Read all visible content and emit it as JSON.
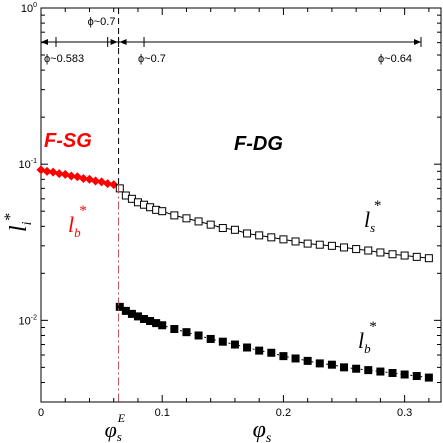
{
  "chart_data": {
    "type": "scatter",
    "title": "",
    "xlabel": "φ",
    "xlabel_subscript": "s",
    "ylabel": "l",
    "ylabel_subscript": "i",
    "ylabel_superscript": "*",
    "xlim": [
      0,
      0.33
    ],
    "ylim": [
      0.003,
      1
    ],
    "yscale": "log",
    "grid": false,
    "x_ticks": [
      {
        "value": 0,
        "label": "0"
      },
      {
        "value": 0.1,
        "label": "0.1"
      },
      {
        "value": 0.2,
        "label": "0.2"
      },
      {
        "value": 0.3,
        "label": "0.3"
      }
    ],
    "y_ticks": [
      {
        "value": 1,
        "base": "10",
        "exp": "0"
      },
      {
        "value": 0.1,
        "base": "10",
        "exp": "-1"
      },
      {
        "value": 0.01,
        "base": "10",
        "exp": "-2"
      }
    ],
    "phi_E_marker": {
      "x": 0.064,
      "label_main": "φ",
      "label_sub": "s",
      "label_sup": "E"
    },
    "regions": [
      {
        "label": "F-SG",
        "color": "#ff0000"
      },
      {
        "label": "F-DG",
        "color": "#000000"
      }
    ],
    "top_annotations": {
      "upper_label": "ϕ~0.7",
      "lower_labels": [
        "ϕ~0.583",
        "ϕ~0.7",
        "ϕ~0.64"
      ]
    },
    "series": [
      {
        "name": "l_b* (F-SG)",
        "label_main": "l",
        "label_sub": "b",
        "label_sup": "*",
        "marker": "diamond",
        "color": "#ff0000",
        "x": [
          0.0,
          0.005,
          0.01,
          0.015,
          0.02,
          0.025,
          0.03,
          0.035,
          0.04,
          0.045,
          0.05,
          0.055,
          0.06
        ],
        "y": [
          0.092,
          0.09,
          0.089,
          0.087,
          0.086,
          0.084,
          0.083,
          0.081,
          0.08,
          0.078,
          0.077,
          0.075,
          0.074
        ]
      },
      {
        "name": "l_s* (F-DG)",
        "label_main": "l",
        "label_sub": "s",
        "label_sup": "*",
        "marker": "square-open",
        "color": "#000000",
        "x": [
          0.065,
          0.07,
          0.075,
          0.08,
          0.085,
          0.09,
          0.095,
          0.1,
          0.11,
          0.12,
          0.13,
          0.14,
          0.15,
          0.16,
          0.17,
          0.18,
          0.19,
          0.2,
          0.21,
          0.22,
          0.23,
          0.24,
          0.25,
          0.26,
          0.27,
          0.28,
          0.29,
          0.3,
          0.31,
          0.32
        ],
        "y": [
          0.07,
          0.063,
          0.06,
          0.057,
          0.055,
          0.053,
          0.051,
          0.05,
          0.047,
          0.045,
          0.043,
          0.041,
          0.039,
          0.038,
          0.036,
          0.035,
          0.034,
          0.033,
          0.032,
          0.031,
          0.0305,
          0.03,
          0.0293,
          0.0286,
          0.028,
          0.0272,
          0.0265,
          0.026,
          0.0255,
          0.025
        ]
      },
      {
        "name": "l_b* (F-DG)",
        "label_main": "l",
        "label_sub": "b",
        "label_sup": "*",
        "marker": "square-filled",
        "color": "#000000",
        "x": [
          0.065,
          0.07,
          0.075,
          0.08,
          0.085,
          0.09,
          0.095,
          0.1,
          0.11,
          0.12,
          0.13,
          0.14,
          0.15,
          0.16,
          0.17,
          0.18,
          0.19,
          0.2,
          0.21,
          0.22,
          0.23,
          0.24,
          0.25,
          0.26,
          0.27,
          0.28,
          0.29,
          0.3,
          0.31,
          0.32
        ],
        "y": [
          0.0122,
          0.0115,
          0.011,
          0.0106,
          0.0102,
          0.0099,
          0.0096,
          0.0093,
          0.0088,
          0.0084,
          0.008,
          0.0076,
          0.0073,
          0.007,
          0.0067,
          0.0064,
          0.0062,
          0.0059,
          0.0057,
          0.0055,
          0.0053,
          0.0052,
          0.005,
          0.0049,
          0.0048,
          0.0047,
          0.0046,
          0.0045,
          0.0044,
          0.0043
        ]
      }
    ]
  }
}
